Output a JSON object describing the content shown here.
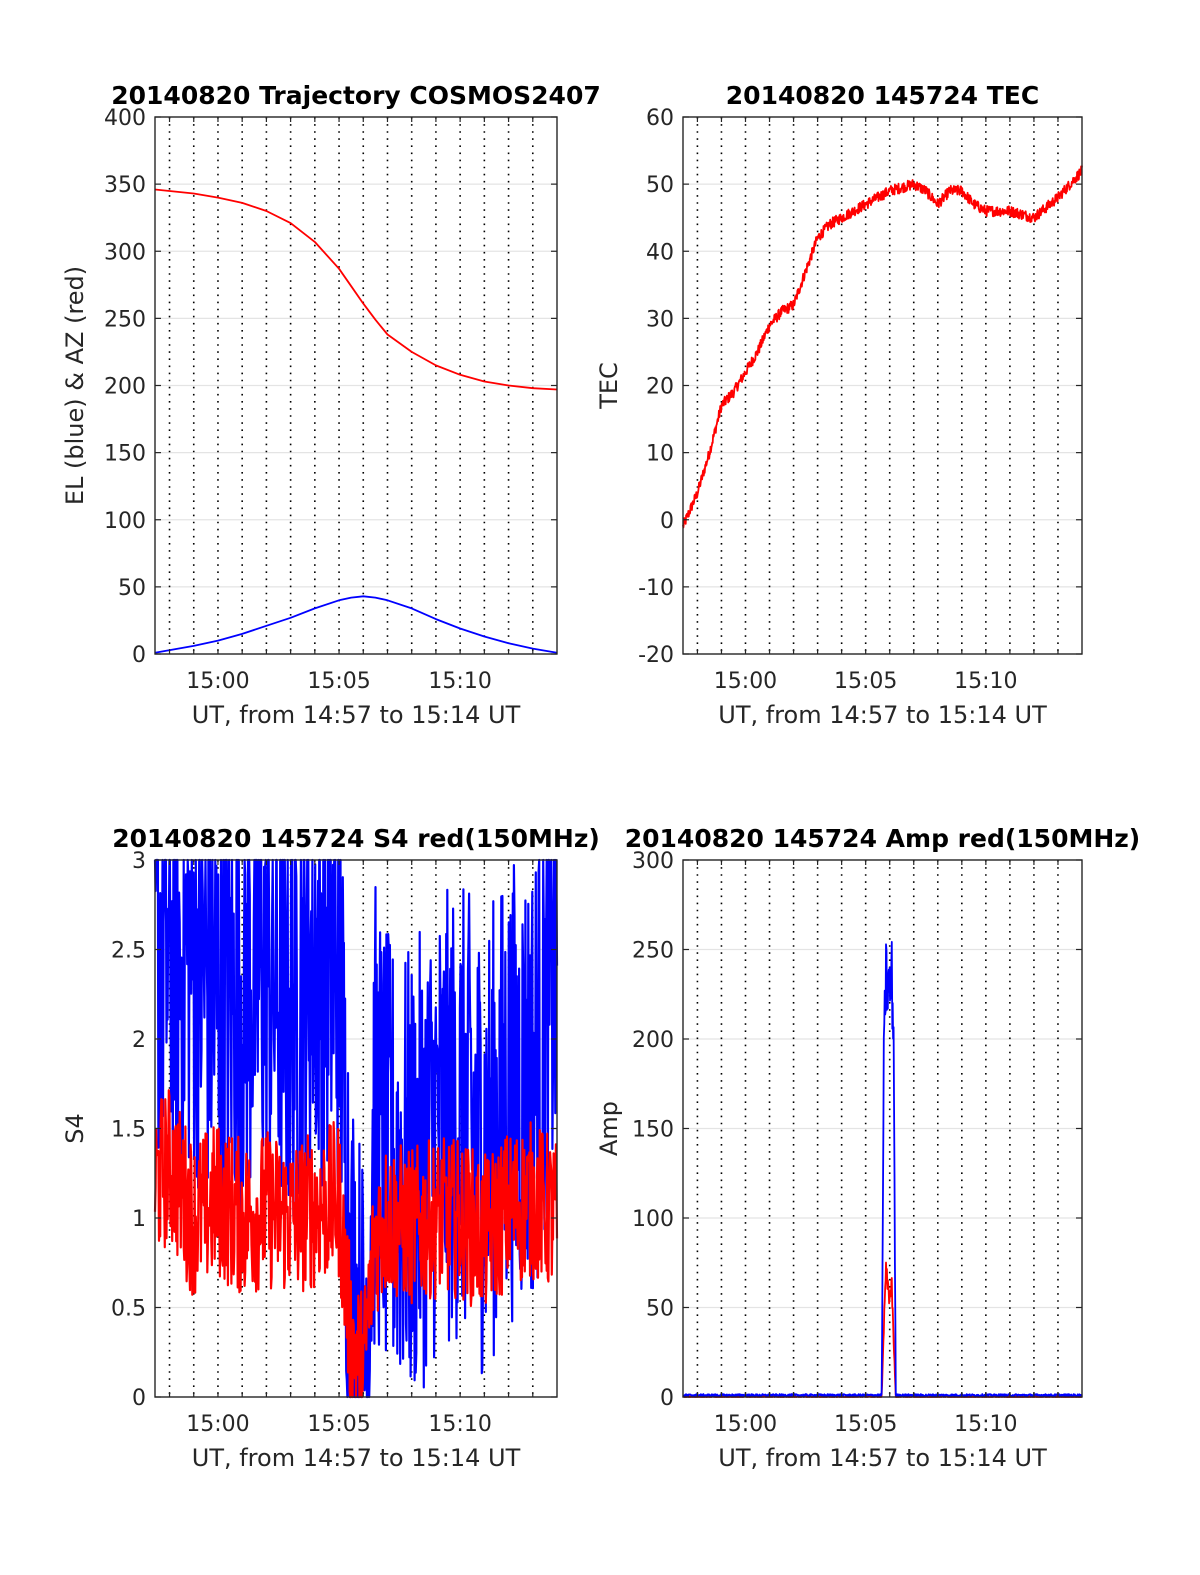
{
  "chart_data": [
    {
      "type": "line",
      "title": "20140820 Trajectory COSMOS2407",
      "xlabel": "UT, from 14:57 to 15:14 UT",
      "ylabel": "EL (blue) & AZ (red)",
      "xlim": [
        "14:57:24",
        "15:14:00"
      ],
      "ylim": [
        0,
        400
      ],
      "yticks": [
        0,
        50,
        100,
        150,
        200,
        250,
        300,
        350,
        400
      ],
      "xticks": [
        "15:00",
        "15:05",
        "15:10"
      ],
      "grid": true,
      "series": [
        {
          "color": "#ff0000",
          "x": [
            "14:57:24",
            "14:59:00",
            "15:00:00",
            "15:01:00",
            "15:02:00",
            "15:03:00",
            "15:04:00",
            "15:05:00",
            "15:05:30",
            "15:06:00",
            "15:06:30",
            "15:07:00",
            "15:08:00",
            "15:09:00",
            "15:10:00",
            "15:11:00",
            "15:12:00",
            "15:13:00",
            "15:14:00"
          ],
          "values": [
            346,
            343,
            340,
            336,
            330,
            321,
            307,
            287,
            274,
            261,
            249,
            238,
            225,
            215,
            208,
            203,
            200,
            198,
            197
          ]
        },
        {
          "color": "#0000ff",
          "x": [
            "14:57:24",
            "14:59:00",
            "15:00:00",
            "15:01:00",
            "15:02:00",
            "15:03:00",
            "15:04:00",
            "15:05:00",
            "15:05:30",
            "15:06:00",
            "15:06:30",
            "15:07:00",
            "15:08:00",
            "15:09:00",
            "15:10:00",
            "15:11:00",
            "15:12:00",
            "15:13:00",
            "15:14:00"
          ],
          "values": [
            1,
            6,
            10,
            15,
            21,
            27,
            34,
            40,
            42,
            43,
            42,
            40,
            34,
            26,
            19,
            13,
            8,
            4,
            1
          ]
        }
      ]
    },
    {
      "type": "line",
      "title": "20140820 145724 TEC",
      "xlabel": "UT, from 14:57 to 15:14 UT",
      "ylabel": "TEC",
      "xlim": [
        "14:57:24",
        "15:14:00"
      ],
      "ylim": [
        -20,
        60
      ],
      "yticks": [
        -20,
        -10,
        0,
        10,
        20,
        30,
        40,
        50,
        60
      ],
      "xticks": [
        "15:00",
        "15:05",
        "15:10"
      ],
      "grid": true,
      "series": [
        {
          "color": "#ff0000",
          "x": [
            "14:57:24",
            "14:58:00",
            "14:58:30",
            "14:59:00",
            "14:59:30",
            "15:00:00",
            "15:00:30",
            "15:01:00",
            "15:01:30",
            "15:02:00",
            "15:02:30",
            "15:03:00",
            "15:03:30",
            "15:04:00",
            "15:05:00",
            "15:06:00",
            "15:07:00",
            "15:07:30",
            "15:08:00",
            "15:08:30",
            "15:09:00",
            "15:09:30",
            "15:10:00",
            "15:11:00",
            "15:12:00",
            "15:13:00",
            "15:14:00"
          ],
          "values": [
            -1,
            4,
            10,
            17,
            19,
            22,
            25,
            29,
            31,
            32,
            37,
            42,
            44,
            45,
            47,
            49,
            50,
            49,
            47,
            49,
            49,
            47,
            46,
            46,
            45,
            48,
            52
          ]
        }
      ]
    },
    {
      "type": "line",
      "title": "20140820 145724 S4 red(150MHz)",
      "xlabel": "UT, from 14:57 to 15:14 UT",
      "ylabel": "S4",
      "xlim": [
        "14:57:24",
        "15:14:00"
      ],
      "ylim": [
        0,
        3
      ],
      "yticks": [
        0,
        0.5,
        1,
        1.5,
        2,
        2.5,
        3
      ],
      "xticks": [
        "15:00",
        "15:05",
        "15:10"
      ],
      "grid": true,
      "series": [
        {
          "color": "#0000ff",
          "x": [
            "14:57:24",
            "14:58:00",
            "14:59:00",
            "15:00:00",
            "15:01:00",
            "15:02:00",
            "15:03:00",
            "15:04:00",
            "15:05:00",
            "15:05:30",
            "15:06:00",
            "15:06:30",
            "15:07:00",
            "15:08:00",
            "15:09:00",
            "15:10:00",
            "15:11:00",
            "15:12:00",
            "15:13:00",
            "15:14:00"
          ],
          "values": [
            2.6,
            2.4,
            2.5,
            2.2,
            2.3,
            2.4,
            2.2,
            2.5,
            2.4,
            0.6,
            0.1,
            1.6,
            1.3,
            1.2,
            1.5,
            1.6,
            1.4,
            1.7,
            1.8,
            2.5
          ]
        },
        {
          "color": "#ff0000",
          "x": [
            "14:57:24",
            "14:58:00",
            "14:59:00",
            "15:00:00",
            "15:01:00",
            "15:02:00",
            "15:03:00",
            "15:04:00",
            "15:05:00",
            "15:05:30",
            "15:06:00",
            "15:06:30",
            "15:07:00",
            "15:08:00",
            "15:09:00",
            "15:10:00",
            "15:11:00",
            "15:12:00",
            "15:13:00",
            "15:14:00"
          ],
          "values": [
            1.2,
            1.3,
            1.0,
            1.1,
            1.0,
            1.05,
            1.0,
            1.05,
            1.1,
            0.3,
            0.15,
            0.9,
            1.0,
            0.95,
            1.0,
            1.0,
            0.9,
            1.05,
            1.1,
            1.0
          ]
        }
      ]
    },
    {
      "type": "line",
      "title": "20140820 145724 Amp red(150MHz)",
      "xlabel": "UT, from 14:57 to 15:14 UT",
      "ylabel": "Amp",
      "xlim": [
        "14:57:24",
        "15:14:00"
      ],
      "ylim": [
        0,
        300
      ],
      "yticks": [
        0,
        50,
        100,
        150,
        200,
        250,
        300
      ],
      "xticks": [
        "15:00",
        "15:05",
        "15:10"
      ],
      "grid": true,
      "series": [
        {
          "color": "#ff0000",
          "x": [
            "14:57:24",
            "15:05:40",
            "15:05:45",
            "15:05:50",
            "15:06:00",
            "15:06:05",
            "15:06:10",
            "15:06:15",
            "15:14:00"
          ],
          "values": [
            0,
            0,
            35,
            70,
            55,
            62,
            30,
            0,
            0
          ]
        },
        {
          "color": "#0000ff",
          "x": [
            "14:57:24",
            "15:05:40",
            "15:05:45",
            "15:05:50",
            "15:06:00",
            "15:06:05",
            "15:06:10",
            "15:06:15",
            "15:14:00"
          ],
          "values": [
            1,
            1,
            180,
            235,
            225,
            235,
            200,
            1,
            1
          ]
        }
      ]
    }
  ]
}
